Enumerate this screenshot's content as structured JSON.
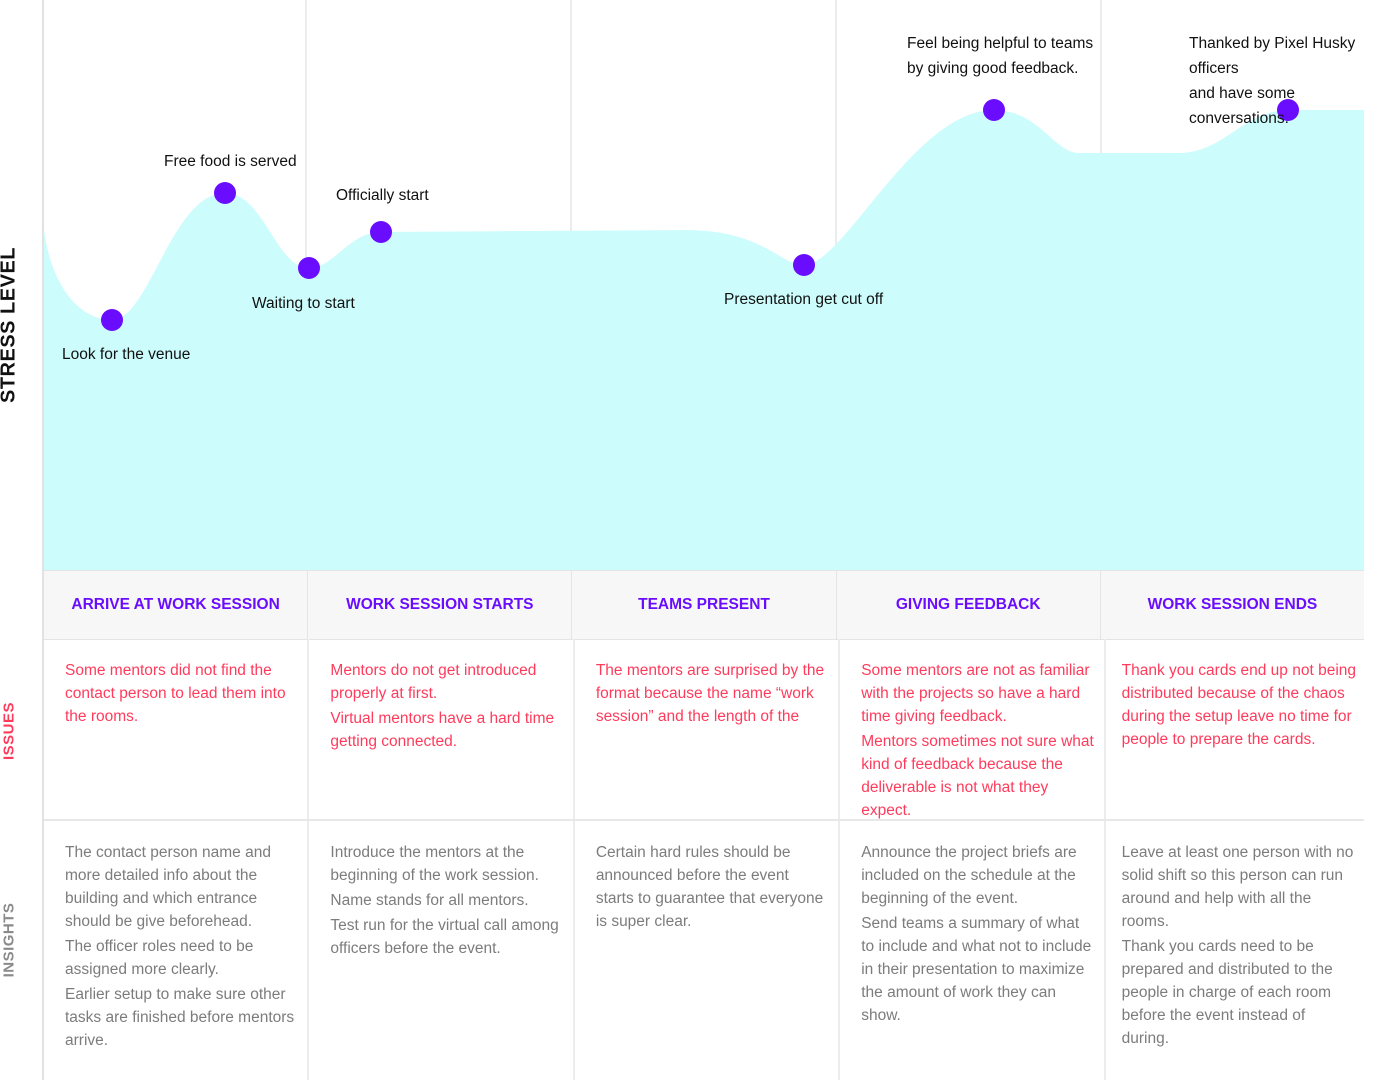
{
  "axis_labels": {
    "stress_level": "STRESS LEVEL",
    "issues": "ISSUES",
    "insights": "INSIGHTS"
  },
  "colors": {
    "curve_fill": "#cdfcfc",
    "point": "#6a0dff",
    "stage_text": "#6a0dff",
    "issue_text": "#ff3b5c",
    "insight_text": "#7c7c7c"
  },
  "events": [
    {
      "label": "Look for the venue"
    },
    {
      "label": "Free food is served"
    },
    {
      "label": "Waiting to start"
    },
    {
      "label": "Officially start"
    },
    {
      "label": "Presentation get cut off"
    },
    {
      "label": "Feel being helpful to teams\nby giving good feedback."
    },
    {
      "label": "Thanked by Pixel Husky officers\nand have some conversations."
    }
  ],
  "stages": [
    {
      "title": "ARRIVE AT WORK SESSION"
    },
    {
      "title": "WORK SESSION STARTS"
    },
    {
      "title": "TEAMS PRESENT"
    },
    {
      "title": "GIVING FEEDBACK"
    },
    {
      "title": "WORK SESSION ENDS"
    }
  ],
  "issues": [
    [
      "Some mentors did not find the contact person to lead them into the rooms."
    ],
    [
      "Mentors do not get introduced properly at first.",
      "Virtual mentors have a hard time getting connected."
    ],
    [
      "The mentors are surprised by the format because the name “work session” and the length of the"
    ],
    [
      "Some mentors are not as familiar with the projects so have a hard time giving feedback.",
      "Mentors sometimes not sure what kind of feedback because the deliverable is not what they expect."
    ],
    [
      "Thank you cards end up not being distributed because of the chaos during the setup leave no time for people to prepare the cards."
    ]
  ],
  "insights": [
    [
      "The contact person name and more detailed info about the building and which entrance should be give beforehead.",
      "The officer roles need to be assigned more clearly.",
      "Earlier setup to make sure other tasks are finished before mentors arrive."
    ],
    [
      "Introduce the mentors at the beginning of the work session.",
      "Name stands for all mentors.",
      "Test run for the virtual call among officers before the event."
    ],
    [
      "Certain hard rules should be announced before the event starts to guarantee that everyone is super clear."
    ],
    [
      "Announce the project briefs are included on the schedule at the beginning of the event.",
      "Send teams a summary of what to include and what not to include in their presentation to maximize the amount of work they can show."
    ],
    [
      "Leave at least one person with no solid shift so this person can run around and help with all the rooms.",
      "Thank you cards need to be prepared and distributed to the people in charge of each room before the event instead of during."
    ]
  ]
}
